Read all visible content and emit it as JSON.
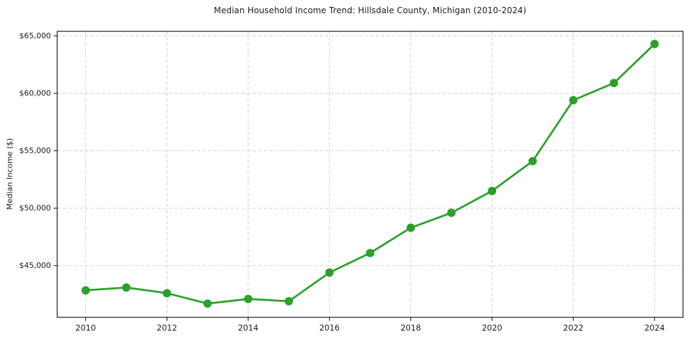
{
  "chart_data": {
    "type": "line",
    "title": "Median Household Income Trend: Hillsdale County, Michigan (2010-2024)",
    "xlabel": "",
    "ylabel": "Median Income ($)",
    "x": [
      2010,
      2011,
      2012,
      2013,
      2014,
      2015,
      2016,
      2017,
      2018,
      2019,
      2020,
      2021,
      2022,
      2023,
      2024
    ],
    "values": [
      42850,
      43100,
      42600,
      41700,
      42100,
      41900,
      44400,
      46100,
      48300,
      49600,
      51500,
      54100,
      59400,
      60900,
      64300
    ],
    "series_name": "Median Household Income",
    "xlim": [
      2009.3,
      2024.7
    ],
    "ylim": [
      40500,
      65400
    ],
    "xticks": [
      {
        "value": 2010,
        "label": "2010"
      },
      {
        "value": 2012,
        "label": "2012"
      },
      {
        "value": 2014,
        "label": "2014"
      },
      {
        "value": 2016,
        "label": "2016"
      },
      {
        "value": 2018,
        "label": "2018"
      },
      {
        "value": 2020,
        "label": "2020"
      },
      {
        "value": 2022,
        "label": "2022"
      },
      {
        "value": 2024,
        "label": "2024"
      }
    ],
    "yticks": [
      {
        "value": 45000,
        "label": "$45,000"
      },
      {
        "value": 50000,
        "label": "$50,000"
      },
      {
        "value": 55000,
        "label": "$55,000"
      },
      {
        "value": 60000,
        "label": "$60,000"
      },
      {
        "value": 65000,
        "label": "$65,000"
      }
    ],
    "grid": true,
    "grid_style": "dashed",
    "legend": "none",
    "line_color": "#2ca02c",
    "marker": "circle",
    "grid_color": "#cdcdcd",
    "spine_color": "#1a1a1a",
    "text_color": "#1a1a1a",
    "background_color": "#ffffff"
  }
}
